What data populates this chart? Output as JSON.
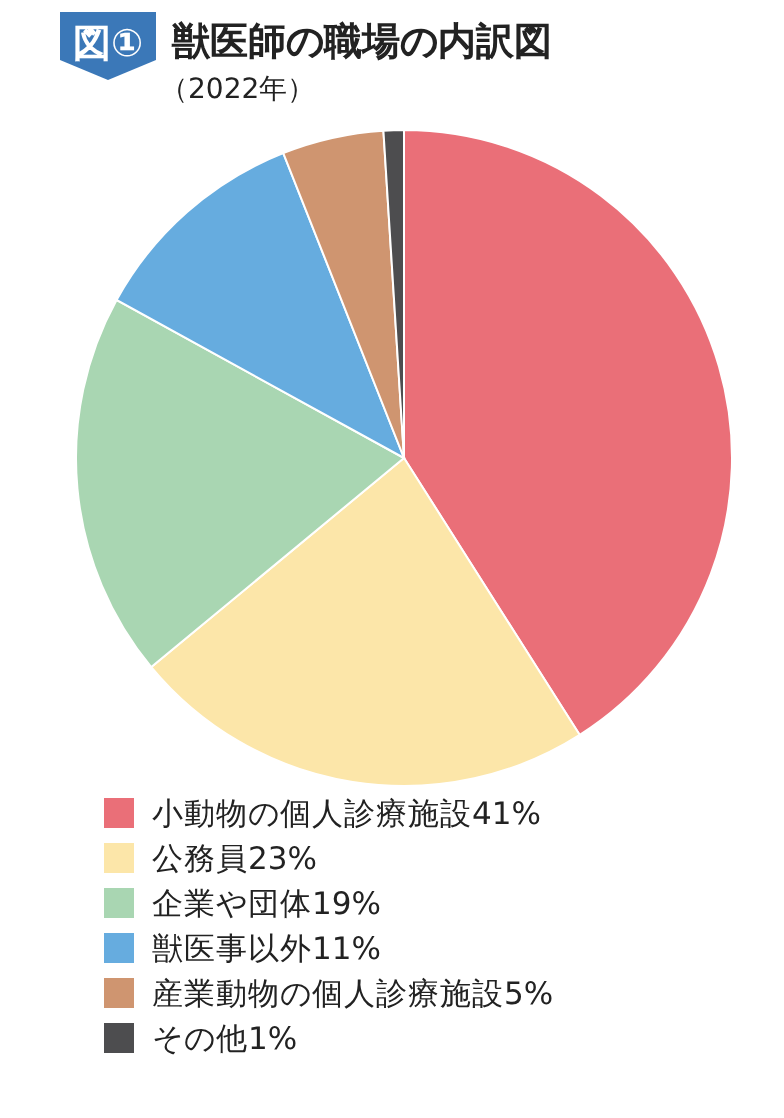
{
  "chart_data": {
    "type": "pie",
    "title": "獣医師の職場の内訳図",
    "subtitle": "（2022年）",
    "annotations": [
      "図①"
    ],
    "categories": [
      "小動物の個人診療施設41%",
      "公務員23%",
      "企業や団体19%",
      "獣医事以外11%",
      "産業動物の個人診療施設5%",
      "その他1%"
    ],
    "values": [
      41,
      23,
      19,
      11,
      5,
      1
    ],
    "colors": [
      "#ea6f78",
      "#fce6a9",
      "#a9d6b2",
      "#66acdf",
      "#cf9570",
      "#4d4d4f"
    ],
    "legend": "bottom"
  }
}
